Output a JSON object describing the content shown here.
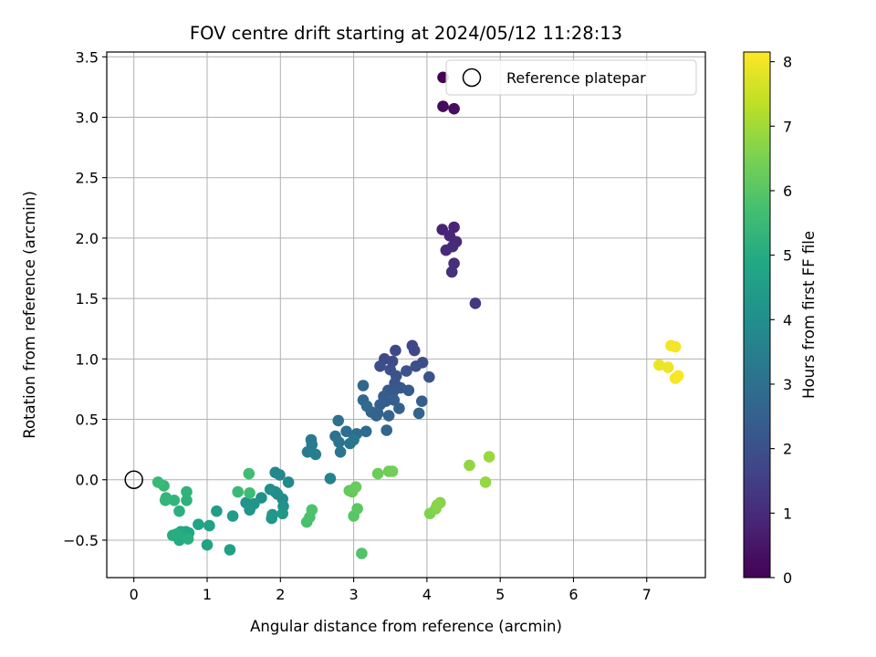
{
  "chart_data": {
    "type": "scatter",
    "title": "FOV centre drift starting at 2024/05/12 11:28:13",
    "xlabel": "Angular distance from reference (arcmin)",
    "ylabel": "Rotation from reference (arcmin)",
    "xlim": [
      -0.37,
      7.8
    ],
    "ylim": [
      -0.81,
      3.54
    ],
    "xticks": [
      0,
      1,
      2,
      3,
      4,
      5,
      6,
      7
    ],
    "xtick_labels": [
      "0",
      "1",
      "2",
      "3",
      "4",
      "5",
      "6",
      "7"
    ],
    "yticks": [
      -0.5,
      0.0,
      0.5,
      1.0,
      1.5,
      2.0,
      2.5,
      3.0,
      3.5
    ],
    "ytick_labels": [
      "−0.5",
      "0.0",
      "0.5",
      "1.0",
      "1.5",
      "2.0",
      "2.5",
      "3.0",
      "3.5"
    ],
    "grid": true,
    "legend": {
      "placement": "top-right",
      "entries": [
        "Reference platepar"
      ]
    },
    "reference_point": {
      "x": 0,
      "y": 0
    },
    "colorbar": {
      "label": "Hours from first FF file",
      "range": [
        0,
        8.15
      ],
      "ticks": [
        0,
        1,
        2,
        3,
        4,
        5,
        6,
        7,
        8
      ],
      "tick_labels": [
        "0",
        "1",
        "2",
        "3",
        "4",
        "5",
        "6",
        "7",
        "8"
      ],
      "colormap": "viridis"
    },
    "points": [
      [
        4.22,
        3.33,
        0.0
      ],
      [
        4.22,
        3.09,
        0.2
      ],
      [
        4.37,
        3.07,
        0.3
      ],
      [
        4.21,
        2.07,
        0.8
      ],
      [
        4.37,
        2.09,
        0.85
      ],
      [
        4.31,
        2.02,
        0.9
      ],
      [
        4.4,
        1.97,
        0.95
      ],
      [
        4.26,
        1.9,
        1.0
      ],
      [
        4.35,
        1.93,
        1.05
      ],
      [
        4.37,
        1.79,
        1.1
      ],
      [
        4.34,
        1.72,
        1.15
      ],
      [
        4.66,
        1.46,
        1.3
      ],
      [
        3.8,
        1.11,
        1.7
      ],
      [
        3.83,
        1.07,
        1.75
      ],
      [
        3.57,
        1.07,
        1.8
      ],
      [
        3.42,
        1.0,
        1.85
      ],
      [
        3.53,
        0.98,
        1.9
      ],
      [
        3.94,
        0.97,
        1.9
      ],
      [
        3.36,
        0.94,
        1.95
      ],
      [
        3.5,
        0.91,
        2.0
      ],
      [
        3.85,
        0.94,
        2.0
      ],
      [
        3.72,
        0.9,
        2.05
      ],
      [
        3.58,
        0.86,
        2.1
      ],
      [
        4.03,
        0.85,
        2.1
      ],
      [
        3.56,
        0.8,
        2.15
      ],
      [
        3.64,
        0.76,
        2.2
      ],
      [
        3.54,
        0.73,
        2.25
      ],
      [
        3.47,
        0.74,
        2.3
      ],
      [
        3.75,
        0.74,
        2.3
      ],
      [
        3.41,
        0.69,
        2.35
      ],
      [
        3.44,
        0.65,
        2.4
      ],
      [
        3.93,
        0.65,
        2.4
      ],
      [
        3.36,
        0.62,
        2.45
      ],
      [
        3.55,
        0.66,
        2.45
      ],
      [
        3.62,
        0.59,
        2.5
      ],
      [
        3.33,
        0.55,
        2.5
      ],
      [
        3.24,
        0.56,
        2.55
      ],
      [
        3.31,
        0.53,
        2.6
      ],
      [
        3.48,
        0.53,
        2.6
      ],
      [
        3.89,
        0.55,
        2.6
      ],
      [
        3.45,
        0.41,
        2.7
      ],
      [
        3.13,
        0.78,
        2.7
      ],
      [
        3.13,
        0.66,
        2.75
      ],
      [
        3.18,
        0.61,
        2.8
      ],
      [
        3.17,
        0.4,
        2.85
      ],
      [
        3.04,
        0.38,
        2.9
      ],
      [
        2.9,
        0.4,
        2.95
      ],
      [
        2.79,
        0.49,
        3.0
      ],
      [
        2.75,
        0.36,
        3.05
      ],
      [
        2.8,
        0.31,
        3.1
      ],
      [
        2.95,
        0.3,
        3.1
      ],
      [
        3.0,
        0.33,
        3.15
      ],
      [
        2.82,
        0.23,
        3.2
      ],
      [
        2.42,
        0.33,
        3.3
      ],
      [
        2.43,
        0.29,
        3.35
      ],
      [
        2.37,
        0.23,
        3.4
      ],
      [
        2.48,
        0.21,
        3.45
      ],
      [
        2.68,
        0.01,
        3.6
      ],
      [
        1.93,
        0.06,
        3.7
      ],
      [
        1.99,
        0.04,
        3.75
      ],
      [
        2.11,
        -0.02,
        3.8
      ],
      [
        1.93,
        -0.1,
        3.85
      ],
      [
        1.96,
        -0.12,
        3.9
      ],
      [
        2.03,
        -0.16,
        3.95
      ],
      [
        1.86,
        -0.08,
        4.0
      ],
      [
        1.74,
        -0.15,
        4.05
      ],
      [
        2.04,
        -0.22,
        4.1
      ],
      [
        1.53,
        -0.19,
        4.15
      ],
      [
        1.64,
        -0.2,
        4.2
      ],
      [
        1.58,
        -0.25,
        4.25
      ],
      [
        1.89,
        -0.29,
        4.3
      ],
      [
        1.88,
        -0.32,
        4.3
      ],
      [
        2.03,
        -0.28,
        4.35
      ],
      [
        1.35,
        -0.3,
        4.45
      ],
      [
        1.13,
        -0.26,
        4.5
      ],
      [
        1.31,
        -0.58,
        4.6
      ],
      [
        1.03,
        -0.38,
        4.65
      ],
      [
        1.0,
        -0.54,
        4.7
      ],
      [
        0.88,
        -0.37,
        4.75
      ],
      [
        0.71,
        -0.43,
        4.8
      ],
      [
        0.75,
        -0.44,
        4.85
      ],
      [
        0.64,
        -0.43,
        4.9
      ],
      [
        0.62,
        -0.5,
        4.95
      ],
      [
        0.53,
        -0.46,
        5.0
      ],
      [
        0.58,
        -0.45,
        5.05
      ],
      [
        0.74,
        -0.49,
        5.1
      ],
      [
        0.62,
        -0.26,
        5.15
      ],
      [
        0.72,
        -0.17,
        5.2
      ],
      [
        0.72,
        -0.1,
        5.25
      ],
      [
        0.55,
        -0.17,
        5.3
      ],
      [
        0.44,
        -0.15,
        5.3
      ],
      [
        0.43,
        -0.17,
        5.35
      ],
      [
        0.41,
        -0.05,
        5.4
      ],
      [
        0.33,
        -0.02,
        5.45
      ],
      [
        1.42,
        -0.1,
        5.5
      ],
      [
        1.58,
        -0.11,
        5.55
      ],
      [
        1.57,
        0.05,
        5.6
      ],
      [
        2.36,
        -0.35,
        5.75
      ],
      [
        2.4,
        -0.31,
        5.8
      ],
      [
        2.43,
        -0.25,
        5.85
      ],
      [
        3.11,
        -0.61,
        5.9
      ],
      [
        3.0,
        -0.3,
        6.0
      ],
      [
        3.05,
        -0.24,
        6.05
      ],
      [
        2.94,
        -0.09,
        6.15
      ],
      [
        2.98,
        -0.1,
        6.2
      ],
      [
        3.03,
        -0.06,
        6.25
      ],
      [
        3.33,
        0.05,
        6.3
      ],
      [
        3.48,
        0.07,
        6.35
      ],
      [
        3.53,
        0.07,
        6.4
      ],
      [
        4.04,
        -0.28,
        6.55
      ],
      [
        4.12,
        -0.24,
        6.6
      ],
      [
        4.18,
        -0.19,
        6.65
      ],
      [
        4.14,
        -0.21,
        6.7
      ],
      [
        4.58,
        0.12,
        6.8
      ],
      [
        4.8,
        -0.02,
        6.85
      ],
      [
        4.85,
        0.19,
        6.9
      ],
      [
        7.17,
        0.95,
        7.9
      ],
      [
        7.29,
        0.93,
        7.95
      ],
      [
        7.33,
        1.11,
        8.0
      ],
      [
        7.39,
        1.1,
        8.05
      ],
      [
        7.39,
        0.84,
        8.05
      ],
      [
        7.43,
        0.86,
        8.1
      ]
    ]
  }
}
